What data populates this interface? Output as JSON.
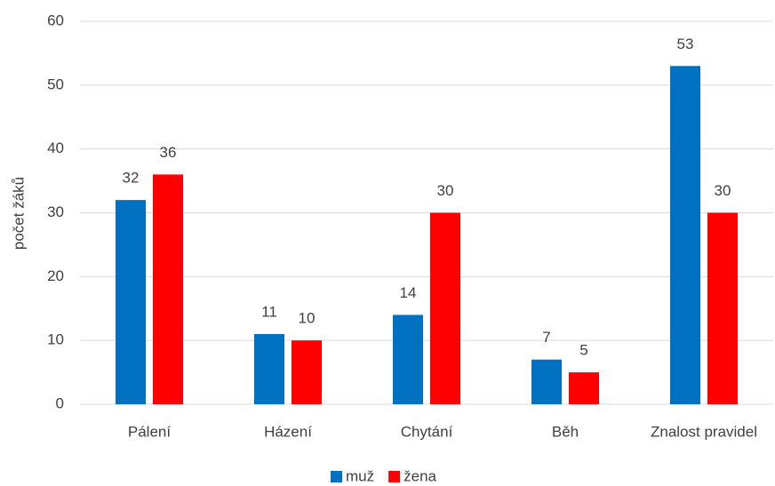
{
  "chart_data": {
    "type": "bar",
    "y_label": "počet žáků",
    "categories": [
      "Pálení",
      "Házení",
      "Chytání",
      "Běh",
      "Znalost pravidel"
    ],
    "series": [
      {
        "name": "muž",
        "color": "#0070c0",
        "values": [
          32,
          11,
          14,
          7,
          53
        ]
      },
      {
        "name": "žena",
        "color": "#ff0000",
        "values": [
          36,
          10,
          30,
          5,
          30
        ]
      }
    ],
    "ylim": [
      0,
      60
    ],
    "yticks": [
      0,
      10,
      20,
      30,
      40,
      50,
      60
    ],
    "grid": true,
    "legend": "bottom"
  }
}
